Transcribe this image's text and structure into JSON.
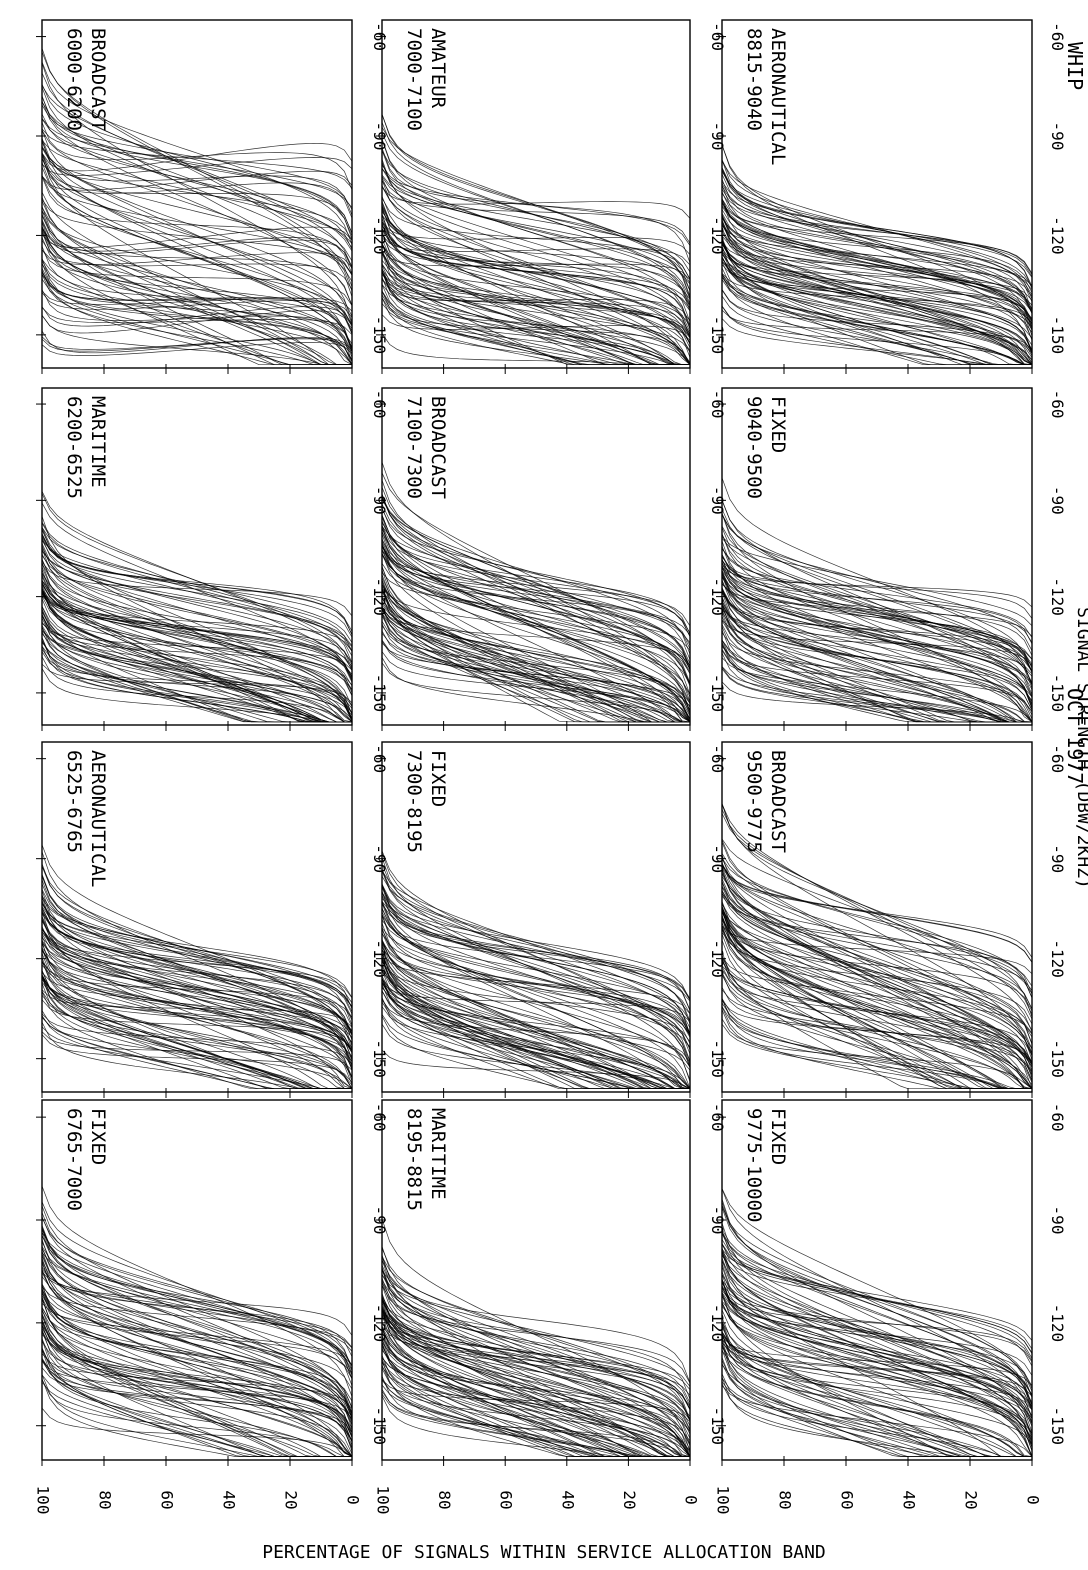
{
  "figure": {
    "header": [
      "WHIP",
      "OCT  1977"
    ],
    "xlabel": "SIGNAL STRENGTH (DBW/2KHZ)",
    "ylabel": "PERCENTAGE OF SIGNALS WITHIN SERVICE ALLOCATION BAND",
    "text_color": "#000000",
    "curve_color": "#000000",
    "background": "#ffffff"
  },
  "chart_data": [
    {
      "type": "line",
      "service": "BROADCAST",
      "band": "6000-6200",
      "xlim": [
        -160,
        -55
      ],
      "ylim": [
        0,
        100
      ],
      "xticks": [
        -150,
        -120,
        -90,
        -60
      ],
      "yticks": [
        0,
        20,
        40,
        60,
        80,
        100
      ],
      "curve_count": 90,
      "level_range": [
        -155,
        -95
      ],
      "spread_range": [
        -25,
        35
      ]
    },
    {
      "type": "line",
      "service": "MARITIME",
      "band": "6200-6525",
      "xlim": [
        -160,
        -55
      ],
      "ylim": [
        0,
        100
      ],
      "xticks": [
        -150,
        -120,
        -90,
        -60
      ],
      "yticks": [
        0,
        20,
        40,
        60,
        80,
        100
      ],
      "curve_count": 90,
      "level_range": [
        -155,
        -115
      ],
      "spread_range": [
        -8,
        28
      ]
    },
    {
      "type": "line",
      "service": "AERONAUTICAL",
      "band": "6525-6765",
      "xlim": [
        -160,
        -55
      ],
      "ylim": [
        0,
        100
      ],
      "xticks": [
        -150,
        -120,
        -90,
        -60
      ],
      "yticks": [
        0,
        20,
        40,
        60,
        80,
        100
      ],
      "curve_count": 90,
      "level_range": [
        -155,
        -115
      ],
      "spread_range": [
        -5,
        22
      ]
    },
    {
      "type": "line",
      "service": "FIXED",
      "band": "6765-7000",
      "xlim": [
        -160,
        -55
      ],
      "ylim": [
        0,
        100
      ],
      "xticks": [
        -150,
        -120,
        -90,
        -60
      ],
      "yticks": [
        0,
        20,
        40,
        60,
        80,
        100
      ],
      "curve_count": 90,
      "level_range": [
        -157,
        -110
      ],
      "spread_range": [
        -5,
        28
      ]
    },
    {
      "type": "line",
      "service": "AMATEUR",
      "band": "7000-7100",
      "xlim": [
        -160,
        -55
      ],
      "ylim": [
        0,
        100
      ],
      "xticks": [
        -150,
        -120,
        -90,
        -60
      ],
      "yticks": [
        0,
        20,
        40,
        60,
        80,
        100
      ],
      "curve_count": 90,
      "level_range": [
        -158,
        -110
      ],
      "spread_range": [
        -12,
        30
      ]
    },
    {
      "type": "line",
      "service": "BROADCAST",
      "band": "7100-7300",
      "xlim": [
        -160,
        -55
      ],
      "ylim": [
        0,
        100
      ],
      "xticks": [
        -150,
        -120,
        -90,
        -60
      ],
      "yticks": [
        0,
        20,
        40,
        60,
        80,
        100
      ],
      "curve_count": 90,
      "level_range": [
        -155,
        -112
      ],
      "spread_range": [
        -5,
        38
      ]
    },
    {
      "type": "line",
      "service": "FIXED",
      "band": "7300-8195",
      "xlim": [
        -160,
        -55
      ],
      "ylim": [
        0,
        100
      ],
      "xticks": [
        -150,
        -120,
        -90,
        -60
      ],
      "yticks": [
        0,
        20,
        40,
        60,
        80,
        100
      ],
      "curve_count": 90,
      "level_range": [
        -157,
        -115
      ],
      "spread_range": [
        -5,
        30
      ]
    },
    {
      "type": "line",
      "service": "MARITIME",
      "band": "8195-8815",
      "xlim": [
        -160,
        -55
      ],
      "ylim": [
        0,
        100
      ],
      "xticks": [
        -150,
        -120,
        -90,
        -60
      ],
      "yticks": [
        0,
        20,
        40,
        60,
        80,
        100
      ],
      "curve_count": 90,
      "level_range": [
        -157,
        -118
      ],
      "spread_range": [
        -5,
        32
      ]
    },
    {
      "type": "line",
      "service": "AERONAUTICAL",
      "band": "8815-9040",
      "xlim": [
        -160,
        -55
      ],
      "ylim": [
        0,
        100
      ],
      "xticks": [
        -150,
        -120,
        -90,
        -60
      ],
      "yticks": [
        0,
        20,
        40,
        60,
        80,
        100
      ],
      "curve_count": 90,
      "level_range": [
        -155,
        -115
      ],
      "spread_range": [
        -5,
        18
      ]
    },
    {
      "type": "line",
      "service": "FIXED",
      "band": "9040-9500",
      "xlim": [
        -160,
        -55
      ],
      "ylim": [
        0,
        100
      ],
      "xticks": [
        -150,
        -120,
        -90,
        -60
      ],
      "yticks": [
        0,
        20,
        40,
        60,
        80,
        100
      ],
      "curve_count": 90,
      "level_range": [
        -157,
        -115
      ],
      "spread_range": [
        -5,
        28
      ]
    },
    {
      "type": "line",
      "service": "BROADCAST",
      "band": "9500-9775",
      "xlim": [
        -160,
        -55
      ],
      "ylim": [
        0,
        100
      ],
      "xticks": [
        -150,
        -120,
        -90,
        -60
      ],
      "yticks": [
        0,
        20,
        40,
        60,
        80,
        100
      ],
      "curve_count": 90,
      "level_range": [
        -155,
        -105
      ],
      "spread_range": [
        -5,
        40
      ]
    },
    {
      "type": "line",
      "service": "FIXED",
      "band": "9775-10000",
      "xlim": [
        -160,
        -55
      ],
      "ylim": [
        0,
        100
      ],
      "xticks": [
        -150,
        -120,
        -90,
        -60
      ],
      "yticks": [
        0,
        20,
        40,
        60,
        80,
        100
      ],
      "curve_count": 90,
      "level_range": [
        -157,
        -110
      ],
      "spread_range": [
        -5,
        32
      ]
    }
  ]
}
